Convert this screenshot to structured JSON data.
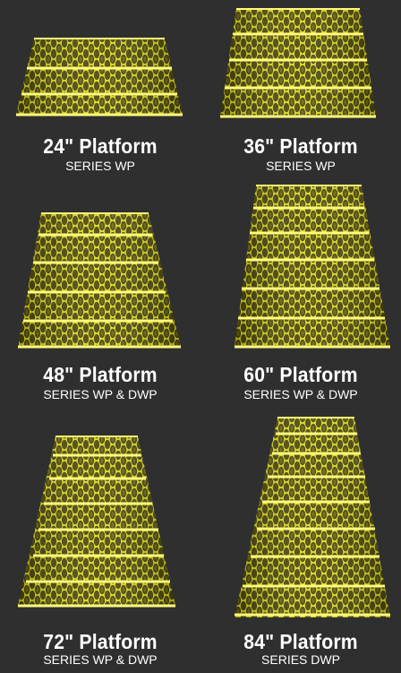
{
  "colors": {
    "background": "#2f2f2f",
    "grate_base": "#e3dc13",
    "grate_dark": "#3a3a0a",
    "grate_light": "#fffb7a",
    "text": "#ffffff"
  },
  "platforms": [
    {
      "title": "24\" Platform",
      "series": "SERIES WP"
    },
    {
      "title": "36\" Platform",
      "series": "SERIES WP"
    },
    {
      "title": "48\" Platform",
      "series": "SERIES WP & DWP"
    },
    {
      "title": "60\" Platform",
      "series": "SERIES WP & DWP"
    },
    {
      "title": "72\" Platform",
      "series": "SERIES WP & DWP"
    },
    {
      "title": "84\" Platform",
      "series": "SERIES DWP"
    }
  ]
}
